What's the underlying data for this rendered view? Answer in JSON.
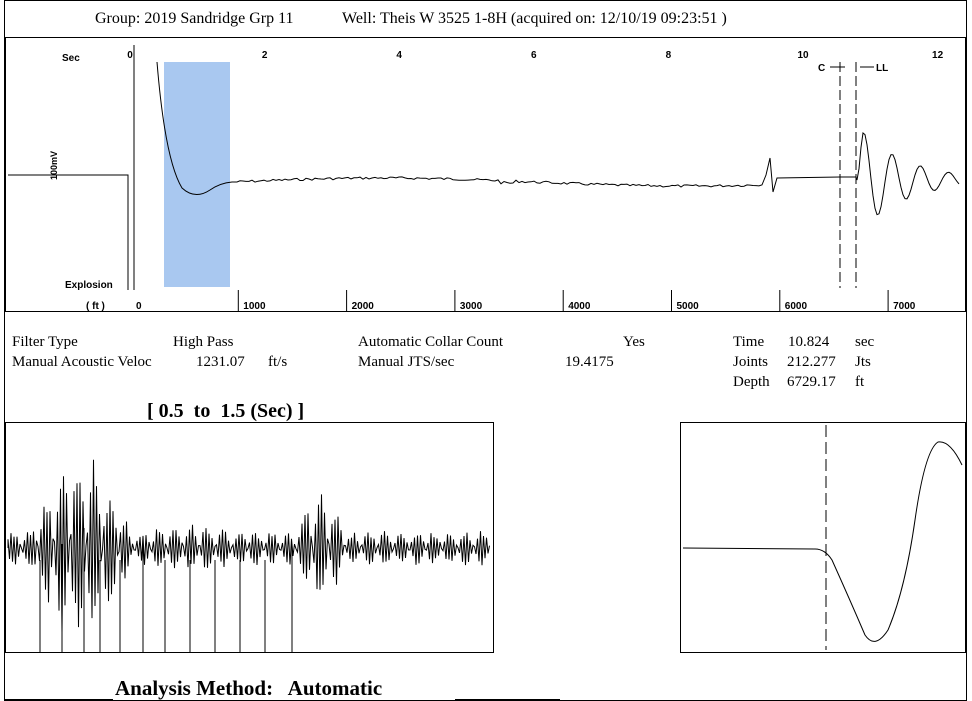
{
  "header": {
    "group": "Group: 2019 Sandridge Grp 11",
    "well": "Well: Theis W 3525 1-8H (acquired on: 12/10/19 09:23:51 )"
  },
  "main_plot": {
    "time_unit": "Sec",
    "time_ticks": [
      0,
      2,
      4,
      6,
      8,
      10,
      12
    ],
    "depth_unit": "( ft )",
    "depth_ticks": [
      0,
      1000,
      2000,
      3000,
      4000,
      5000,
      6000,
      7000
    ],
    "amplitude_label": "100mV",
    "explosion_label": "Explosion",
    "collar_marker": "C",
    "liquid_level_marker": "LL"
  },
  "info": {
    "filter_type_label": "Filter Type",
    "filter_type": "High Pass",
    "collar_count_label": "Automatic Collar Count",
    "collar_count": "Yes",
    "time_label": "Time",
    "time": 10.824,
    "time_unit": "sec",
    "velocity_label": "Manual Acoustic Veloc",
    "velocity": 1231.07,
    "velocity_unit": "ft/s",
    "jts_label": "Manual JTS/sec",
    "jts": 19.4175,
    "joints_label": "Joints",
    "joints": 212.277,
    "joints_unit": "Jts",
    "depth_label": "Depth",
    "depth": 6729.17,
    "depth_unit": "ft"
  },
  "window_title": "[ 0.5  to  1.5 (Sec) ]",
  "analysis_method": "Analysis Method:   Automatic"
}
